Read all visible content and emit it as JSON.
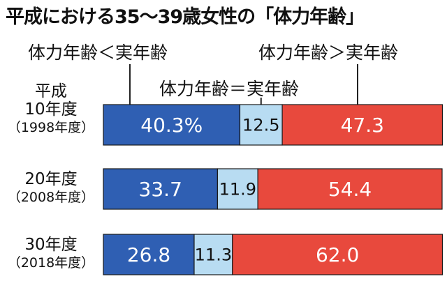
{
  "title": "平成における35〜39歳女性の「体力年齢」",
  "legend": {
    "left": "体力年齢＜実年齢",
    "middle": "体力年齢＝実年齢",
    "right": "体力年齢＞実年齢"
  },
  "rows": [
    {
      "era_top": "平成",
      "label": "10年度",
      "sub": "（1998年度）"
    },
    {
      "era_top": "",
      "label": "20年度",
      "sub": "（2008年度）"
    },
    {
      "era_top": "",
      "label": "30年度",
      "sub": "（2018年度）"
    }
  ],
  "colors": {
    "lower": "#2f5fb3",
    "equal": "#b8dcf2",
    "higher": "#e8493d"
  },
  "chart_data": {
    "type": "bar",
    "orientation": "horizontal",
    "stacked": true,
    "title": "平成における35〜39歳女性の「体力年齢」",
    "categories": [
      "平成10年度（1998年度）",
      "20年度（2008年度）",
      "30年度（2018年度）"
    ],
    "series": [
      {
        "name": "体力年齢＜実年齢",
        "values": [
          40.3,
          33.7,
          26.8
        ],
        "labels": [
          "40.3%",
          "33.7",
          "26.8"
        ]
      },
      {
        "name": "体力年齢＝実年齢",
        "values": [
          12.5,
          11.9,
          11.3
        ],
        "labels": [
          "12.5",
          "11.9",
          "11.3"
        ]
      },
      {
        "name": "体力年齢＞実年齢",
        "values": [
          47.3,
          54.4,
          62.0
        ],
        "labels": [
          "47.3",
          "54.4",
          "62.0"
        ]
      }
    ],
    "xlim": [
      0,
      100
    ]
  }
}
